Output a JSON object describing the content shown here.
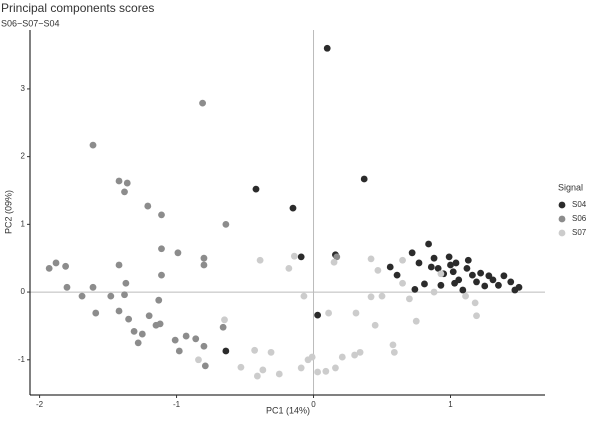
{
  "chart_data": {
    "type": "scatter",
    "title": "Principal components scores",
    "subtitle": "S06−S07−S04",
    "x_label": "PC1 (14%)",
    "y_label": "PC2 (09%)",
    "legend_title": "Signal",
    "legend_position": "right",
    "zero_lines": true,
    "xlim": [
      -2.07,
      1.69
    ],
    "ylim": [
      -1.52,
      3.87
    ],
    "xticks": [
      -2,
      -1,
      0,
      1
    ],
    "yticks": [
      -1,
      0,
      1,
      2,
      3
    ],
    "series": [
      {
        "name": "S04",
        "color": "#2b2b2b",
        "x": [
          0.1,
          -0.42,
          0.37,
          -0.15,
          -0.09,
          0.16,
          -0.64,
          0.03,
          0.56,
          0.61,
          0.74,
          0.77,
          0.84,
          0.88,
          0.91,
          0.95,
          0.93,
          1.0,
          1.02,
          1.04,
          1.06,
          1.09,
          1.12,
          1.13,
          1.16,
          1.19,
          1.22,
          1.25,
          1.28,
          1.31,
          1.35,
          1.39,
          1.44,
          1.47,
          1.5,
          0.81,
          0.72,
          0.99,
          1.03,
          0.86
        ],
        "values": [
          3.6,
          1.52,
          1.67,
          1.24,
          0.52,
          0.55,
          -0.87,
          -0.34,
          0.37,
          0.25,
          0.04,
          0.43,
          0.71,
          0.5,
          0.35,
          0.27,
          0.1,
          0.4,
          0.3,
          0.43,
          0.18,
          0.03,
          0.35,
          0.47,
          0.25,
          0.15,
          0.28,
          0.09,
          0.24,
          0.18,
          0.1,
          0.24,
          0.15,
          0.03,
          0.07,
          0.12,
          0.58,
          0.52,
          0.13,
          0.37
        ]
      },
      {
        "name": "S06",
        "color": "#8c8c8c",
        "x": [
          -1.61,
          -0.81,
          -1.42,
          -1.36,
          -1.38,
          -1.21,
          -1.11,
          -0.64,
          -0.99,
          -0.8,
          -0.8,
          -1.11,
          -1.11,
          -1.42,
          -1.88,
          -1.93,
          -1.81,
          -1.8,
          -1.69,
          -1.61,
          -1.59,
          -1.48,
          -1.42,
          -1.37,
          -1.35,
          -1.31,
          -1.28,
          -1.25,
          -1.2,
          -1.15,
          -1.12,
          -1.01,
          -0.98,
          -0.93,
          -0.86,
          -0.8,
          -0.79,
          -1.38,
          -1.13,
          -0.66,
          0.17
        ],
        "values": [
          2.17,
          2.79,
          1.64,
          1.61,
          1.48,
          1.27,
          1.14,
          1.0,
          0.58,
          0.5,
          0.4,
          0.64,
          0.25,
          0.4,
          0.43,
          0.35,
          0.38,
          0.07,
          -0.06,
          0.07,
          -0.31,
          -0.06,
          -0.28,
          0.13,
          -0.4,
          -0.58,
          -0.75,
          -0.62,
          -0.35,
          -0.49,
          -0.47,
          -0.71,
          -0.87,
          -0.65,
          -0.69,
          -0.8,
          -1.09,
          -0.04,
          -0.12,
          -0.52,
          0.52
        ]
      },
      {
        "name": "S07",
        "color": "#cccccc",
        "x": [
          -0.39,
          -0.18,
          -0.14,
          -0.65,
          -0.84,
          -0.53,
          -0.43,
          -0.41,
          -0.37,
          -0.31,
          -0.25,
          -0.09,
          -0.04,
          -0.01,
          0.03,
          0.09,
          0.16,
          0.21,
          0.3,
          0.34,
          -0.07,
          0.11,
          0.42,
          0.47,
          0.5,
          0.42,
          0.45,
          0.31,
          0.58,
          0.59,
          0.65,
          0.7,
          0.75,
          0.88,
          0.93,
          1.19,
          1.18,
          0.65,
          1.11,
          0.15
        ],
        "values": [
          0.47,
          0.35,
          0.53,
          -0.41,
          -1.0,
          -1.11,
          -0.86,
          -1.24,
          -1.15,
          -0.89,
          -1.21,
          -1.12,
          -1.0,
          -0.96,
          -1.18,
          -1.17,
          -1.12,
          -0.96,
          -0.93,
          -0.89,
          -0.06,
          -0.31,
          0.49,
          0.32,
          -0.06,
          -0.07,
          -0.49,
          -0.31,
          -0.78,
          -0.89,
          0.13,
          -0.1,
          -0.43,
          0.0,
          0.27,
          -0.35,
          -0.16,
          0.47,
          -0.06,
          0.44
        ]
      }
    ]
  }
}
